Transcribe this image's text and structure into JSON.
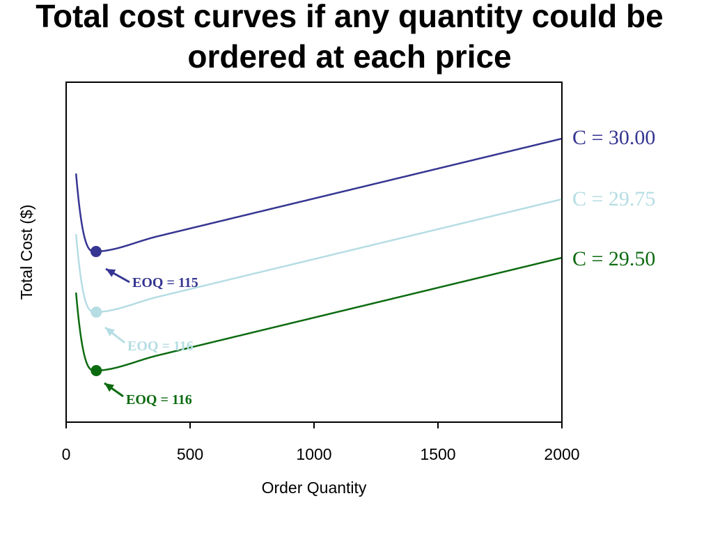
{
  "chart_data": {
    "type": "line",
    "title": "Total cost curves if any quantity could be ordered at each price",
    "xlabel": "Order Quantity",
    "ylabel": "Total Cost ($)",
    "xlim": [
      0,
      2000
    ],
    "xticks": [
      "0",
      "500",
      "1000",
      "1500",
      "2000"
    ],
    "grid": false,
    "legend": "none",
    "series": [
      {
        "name": "C = 30.00",
        "color": "#353592",
        "eoq_x": 115,
        "eoq_label": "EOQ = 115"
      },
      {
        "name": "C = 29.75",
        "color": "#b5dde3",
        "eoq_x": 116,
        "eoq_label": "EOQ = 116"
      },
      {
        "name": "C = 29.50",
        "color": "#0c6b10",
        "eoq_x": 116,
        "eoq_label": "EOQ = 116"
      }
    ]
  }
}
